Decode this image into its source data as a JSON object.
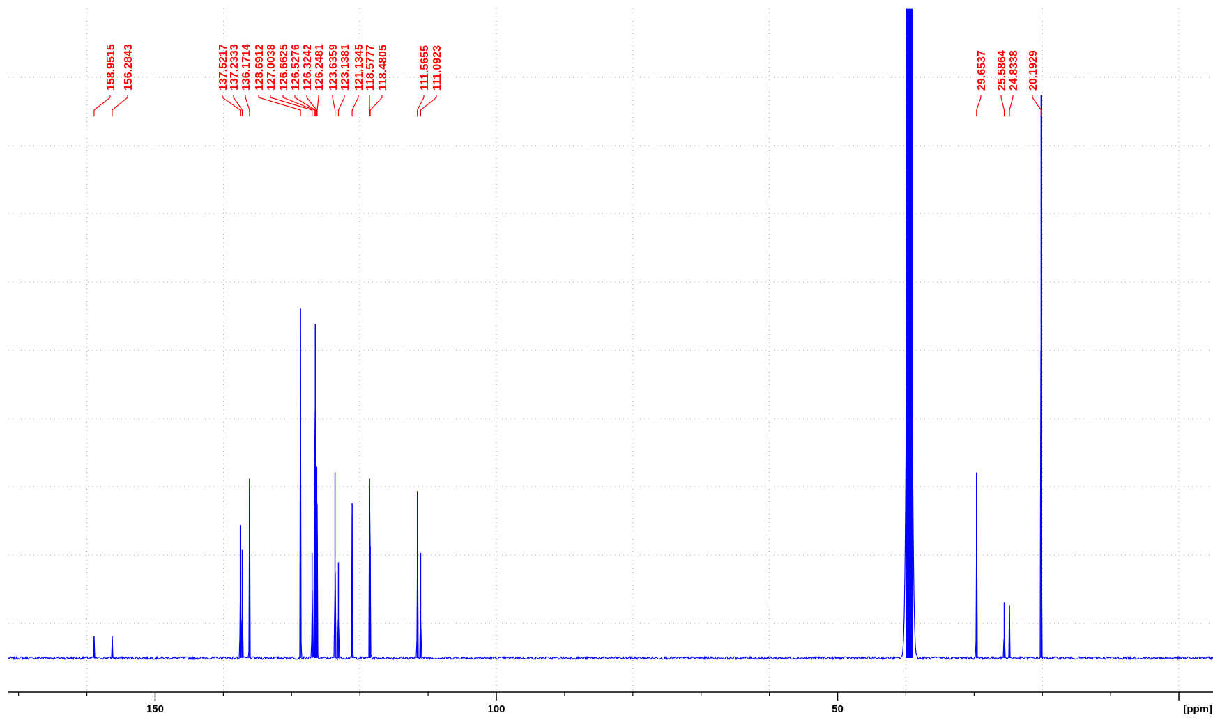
{
  "chart_data": {
    "type": "line",
    "title": "",
    "xlabel": "[ppm]",
    "ylabel": "",
    "x_reversed": true,
    "xlim": [
      171.5,
      -5
    ],
    "ylim": [
      0,
      1
    ],
    "grid": true,
    "legend": "none",
    "colors": {
      "trace": "#0000ff",
      "peak_labels": "#ff0000",
      "grid": "#a0a0a0",
      "axis": "#000000"
    },
    "x_major_ticks": [
      150,
      100,
      50,
      0
    ],
    "x_tick_labels": [
      "150",
      "100",
      "50",
      "[ppm]"
    ],
    "x_minor_ticks": [
      170,
      160,
      140,
      130,
      120,
      110,
      90,
      80,
      70,
      60,
      40,
      30,
      20,
      10
    ],
    "peak_labels": [
      "158.9515",
      "156.2843",
      "137.5217",
      "137.2333",
      "136.1714",
      "128.6912",
      "127.0038",
      "126.6625",
      "126.5276",
      "126.3242",
      "126.2481",
      "123.6359",
      "123.1381",
      "121.1345",
      "118.5777",
      "118.4805",
      "111.5655",
      "111.0923",
      "29.6537",
      "25.5864",
      "24.8338",
      "20.1929"
    ],
    "series": [
      {
        "peaks": [
          {
            "ppm": 158.95,
            "height": 0.035
          },
          {
            "ppm": 156.28,
            "height": 0.035
          },
          {
            "ppm": 137.52,
            "height": 0.215
          },
          {
            "ppm": 137.23,
            "height": 0.175
          },
          {
            "ppm": 136.17,
            "height": 0.29
          },
          {
            "ppm": 128.69,
            "height": 0.565
          },
          {
            "ppm": 127.0,
            "height": 0.17
          },
          {
            "ppm": 126.66,
            "height": 0.285
          },
          {
            "ppm": 126.53,
            "height": 0.54
          },
          {
            "ppm": 126.32,
            "height": 0.31
          },
          {
            "ppm": 126.25,
            "height": 0.2
          },
          {
            "ppm": 123.64,
            "height": 0.3
          },
          {
            "ppm": 123.14,
            "height": 0.155
          },
          {
            "ppm": 121.13,
            "height": 0.25
          },
          {
            "ppm": 118.58,
            "height": 0.29
          },
          {
            "ppm": 118.48,
            "height": 0.18
          },
          {
            "ppm": 111.57,
            "height": 0.27
          },
          {
            "ppm": 111.09,
            "height": 0.17
          },
          {
            "ppm": 39.5,
            "height": 1.05
          },
          {
            "ppm": 29.65,
            "height": 0.3
          },
          {
            "ppm": 25.59,
            "height": 0.09
          },
          {
            "ppm": 24.83,
            "height": 0.085
          },
          {
            "ppm": 20.19,
            "height": 0.91
          }
        ]
      }
    ]
  }
}
